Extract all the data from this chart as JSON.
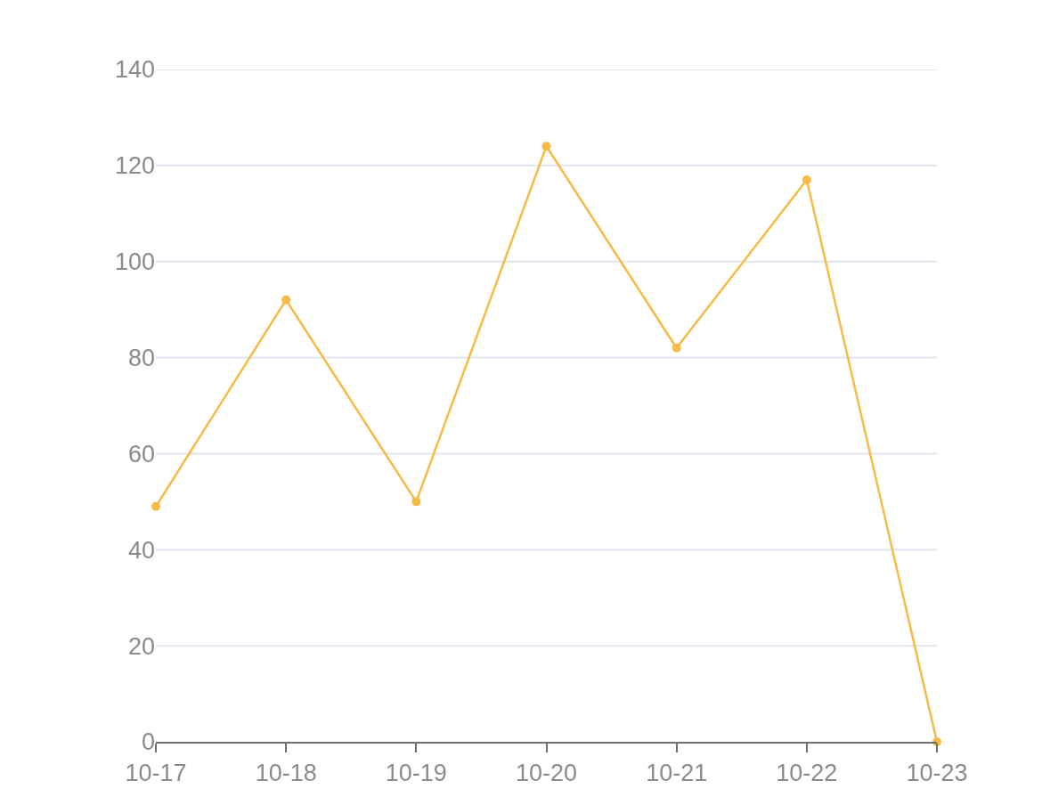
{
  "chart_data": {
    "type": "line",
    "categories": [
      "10-17",
      "10-18",
      "10-19",
      "10-20",
      "10-21",
      "10-22",
      "10-23"
    ],
    "series": [
      {
        "color": "#f7bb45",
        "values": [
          49,
          92,
          50,
          124,
          82,
          117,
          0
        ]
      }
    ],
    "ylim": [
      0,
      140
    ],
    "yticks": [
      0,
      20,
      40,
      60,
      80,
      100,
      120,
      140
    ],
    "grid": "y",
    "marker": "circle",
    "line_style": "solid"
  }
}
